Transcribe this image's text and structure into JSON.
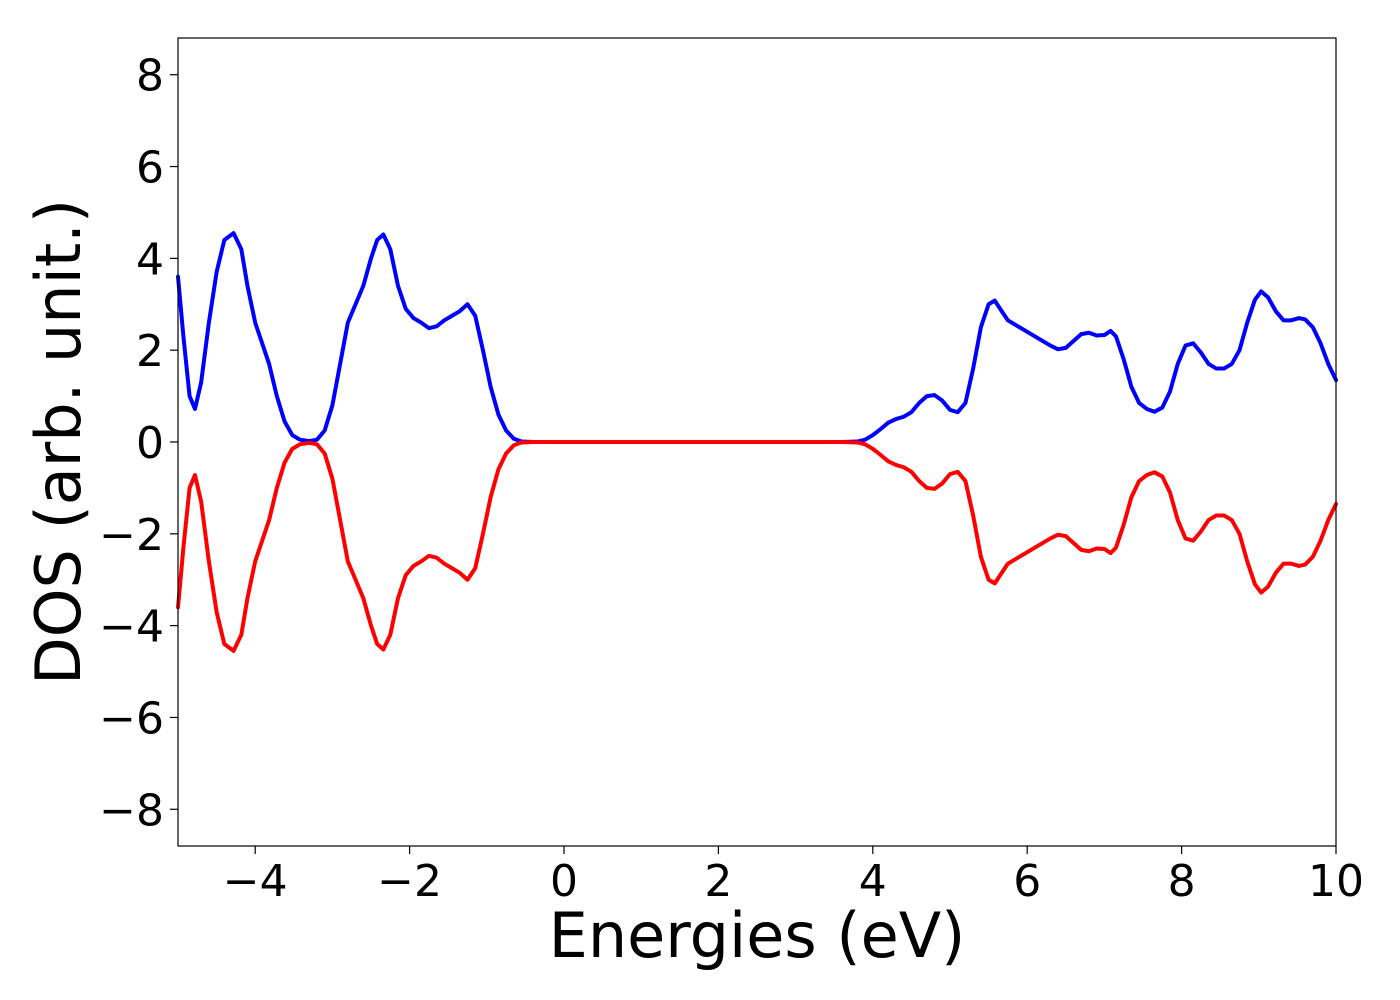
{
  "chart_data": {
    "type": "line",
    "title": "",
    "xlabel": "Energies (eV)",
    "ylabel": "DOS (arb. unit.)",
    "xlim": [
      -5,
      10
    ],
    "ylim": [
      -8.8,
      8.8
    ],
    "x_ticks": [
      -4,
      -2,
      0,
      2,
      4,
      6,
      8,
      10
    ],
    "x_tick_labels": [
      "−4",
      "−2",
      "0",
      "2",
      "4",
      "6",
      "8",
      "10"
    ],
    "y_ticks": [
      -8,
      -6,
      -4,
      -2,
      0,
      2,
      4,
      6,
      8
    ],
    "y_tick_labels": [
      "−8",
      "−6",
      "−4",
      "−2",
      "0",
      "2",
      "4",
      "6",
      "8"
    ],
    "grid": false,
    "legend": "none",
    "series": [
      {
        "color": "#0000ff",
        "points": [
          [
            -5.0,
            3.6
          ],
          [
            -4.93,
            2.3
          ],
          [
            -4.85,
            1.0
          ],
          [
            -4.78,
            0.72
          ],
          [
            -4.7,
            1.3
          ],
          [
            -4.6,
            2.6
          ],
          [
            -4.5,
            3.7
          ],
          [
            -4.4,
            4.4
          ],
          [
            -4.28,
            4.55
          ],
          [
            -4.18,
            4.2
          ],
          [
            -4.1,
            3.4
          ],
          [
            -4.0,
            2.6
          ],
          [
            -3.92,
            2.2
          ],
          [
            -3.82,
            1.7
          ],
          [
            -3.72,
            1.0
          ],
          [
            -3.62,
            0.45
          ],
          [
            -3.52,
            0.15
          ],
          [
            -3.42,
            0.05
          ],
          [
            -3.3,
            0.02
          ],
          [
            -3.2,
            0.05
          ],
          [
            -3.1,
            0.25
          ],
          [
            -3.0,
            0.8
          ],
          [
            -2.9,
            1.7
          ],
          [
            -2.8,
            2.6
          ],
          [
            -2.7,
            3.0
          ],
          [
            -2.6,
            3.4
          ],
          [
            -2.5,
            4.0
          ],
          [
            -2.42,
            4.4
          ],
          [
            -2.34,
            4.52
          ],
          [
            -2.25,
            4.2
          ],
          [
            -2.15,
            3.4
          ],
          [
            -2.05,
            2.9
          ],
          [
            -1.95,
            2.7
          ],
          [
            -1.85,
            2.6
          ],
          [
            -1.75,
            2.48
          ],
          [
            -1.65,
            2.52
          ],
          [
            -1.55,
            2.65
          ],
          [
            -1.45,
            2.75
          ],
          [
            -1.35,
            2.85
          ],
          [
            -1.25,
            3.0
          ],
          [
            -1.15,
            2.75
          ],
          [
            -1.05,
            2.0
          ],
          [
            -0.95,
            1.2
          ],
          [
            -0.85,
            0.6
          ],
          [
            -0.75,
            0.25
          ],
          [
            -0.65,
            0.07
          ],
          [
            -0.55,
            0.01
          ],
          [
            -0.4,
            0.0
          ],
          [
            0.0,
            0.0
          ],
          [
            1.0,
            0.0
          ],
          [
            2.0,
            0.0
          ],
          [
            3.0,
            0.0
          ],
          [
            3.6,
            0.0
          ],
          [
            3.8,
            0.01
          ],
          [
            3.9,
            0.05
          ],
          [
            4.0,
            0.15
          ],
          [
            4.1,
            0.28
          ],
          [
            4.2,
            0.42
          ],
          [
            4.3,
            0.5
          ],
          [
            4.4,
            0.55
          ],
          [
            4.5,
            0.65
          ],
          [
            4.6,
            0.85
          ],
          [
            4.7,
            1.0
          ],
          [
            4.8,
            1.02
          ],
          [
            4.9,
            0.9
          ],
          [
            5.0,
            0.7
          ],
          [
            5.1,
            0.65
          ],
          [
            5.2,
            0.85
          ],
          [
            5.3,
            1.6
          ],
          [
            5.4,
            2.5
          ],
          [
            5.5,
            3.0
          ],
          [
            5.58,
            3.08
          ],
          [
            5.65,
            2.9
          ],
          [
            5.75,
            2.65
          ],
          [
            5.85,
            2.55
          ],
          [
            6.0,
            2.4
          ],
          [
            6.15,
            2.25
          ],
          [
            6.3,
            2.1
          ],
          [
            6.4,
            2.02
          ],
          [
            6.5,
            2.05
          ],
          [
            6.6,
            2.2
          ],
          [
            6.7,
            2.35
          ],
          [
            6.8,
            2.38
          ],
          [
            6.9,
            2.32
          ],
          [
            7.0,
            2.33
          ],
          [
            7.08,
            2.42
          ],
          [
            7.15,
            2.3
          ],
          [
            7.25,
            1.8
          ],
          [
            7.35,
            1.2
          ],
          [
            7.45,
            0.85
          ],
          [
            7.55,
            0.72
          ],
          [
            7.65,
            0.66
          ],
          [
            7.75,
            0.75
          ],
          [
            7.85,
            1.1
          ],
          [
            7.95,
            1.7
          ],
          [
            8.05,
            2.1
          ],
          [
            8.15,
            2.15
          ],
          [
            8.25,
            1.95
          ],
          [
            8.35,
            1.7
          ],
          [
            8.45,
            1.6
          ],
          [
            8.55,
            1.6
          ],
          [
            8.65,
            1.7
          ],
          [
            8.75,
            2.0
          ],
          [
            8.85,
            2.6
          ],
          [
            8.95,
            3.1
          ],
          [
            9.03,
            3.28
          ],
          [
            9.12,
            3.15
          ],
          [
            9.22,
            2.85
          ],
          [
            9.32,
            2.65
          ],
          [
            9.42,
            2.65
          ],
          [
            9.52,
            2.7
          ],
          [
            9.6,
            2.67
          ],
          [
            9.7,
            2.5
          ],
          [
            9.8,
            2.15
          ],
          [
            9.9,
            1.7
          ],
          [
            10.0,
            1.35
          ]
        ]
      },
      {
        "color": "#ff0000",
        "points": [
          [
            -5.0,
            -3.6
          ],
          [
            -4.93,
            -2.3
          ],
          [
            -4.85,
            -1.0
          ],
          [
            -4.78,
            -0.72
          ],
          [
            -4.7,
            -1.3
          ],
          [
            -4.6,
            -2.6
          ],
          [
            -4.5,
            -3.7
          ],
          [
            -4.4,
            -4.4
          ],
          [
            -4.28,
            -4.55
          ],
          [
            -4.18,
            -4.2
          ],
          [
            -4.1,
            -3.4
          ],
          [
            -4.0,
            -2.6
          ],
          [
            -3.92,
            -2.2
          ],
          [
            -3.82,
            -1.7
          ],
          [
            -3.72,
            -1.0
          ],
          [
            -3.62,
            -0.45
          ],
          [
            -3.52,
            -0.15
          ],
          [
            -3.42,
            -0.05
          ],
          [
            -3.3,
            -0.02
          ],
          [
            -3.2,
            -0.05
          ],
          [
            -3.1,
            -0.25
          ],
          [
            -3.0,
            -0.8
          ],
          [
            -2.9,
            -1.7
          ],
          [
            -2.8,
            -2.6
          ],
          [
            -2.7,
            -3.0
          ],
          [
            -2.6,
            -3.4
          ],
          [
            -2.5,
            -4.0
          ],
          [
            -2.42,
            -4.4
          ],
          [
            -2.34,
            -4.52
          ],
          [
            -2.25,
            -4.2
          ],
          [
            -2.15,
            -3.4
          ],
          [
            -2.05,
            -2.9
          ],
          [
            -1.95,
            -2.7
          ],
          [
            -1.85,
            -2.6
          ],
          [
            -1.75,
            -2.48
          ],
          [
            -1.65,
            -2.52
          ],
          [
            -1.55,
            -2.65
          ],
          [
            -1.45,
            -2.75
          ],
          [
            -1.35,
            -2.85
          ],
          [
            -1.25,
            -3.0
          ],
          [
            -1.15,
            -2.75
          ],
          [
            -1.05,
            -2.0
          ],
          [
            -0.95,
            -1.2
          ],
          [
            -0.85,
            -0.6
          ],
          [
            -0.75,
            -0.25
          ],
          [
            -0.65,
            -0.07
          ],
          [
            -0.55,
            -0.01
          ],
          [
            -0.4,
            0.0
          ],
          [
            0.0,
            0.0
          ],
          [
            1.0,
            0.0
          ],
          [
            2.0,
            0.0
          ],
          [
            3.0,
            0.0
          ],
          [
            3.6,
            0.0
          ],
          [
            3.8,
            -0.01
          ],
          [
            3.9,
            -0.05
          ],
          [
            4.0,
            -0.15
          ],
          [
            4.1,
            -0.28
          ],
          [
            4.2,
            -0.42
          ],
          [
            4.3,
            -0.5
          ],
          [
            4.4,
            -0.55
          ],
          [
            4.5,
            -0.65
          ],
          [
            4.6,
            -0.85
          ],
          [
            4.7,
            -1.0
          ],
          [
            4.8,
            -1.02
          ],
          [
            4.9,
            -0.9
          ],
          [
            5.0,
            -0.7
          ],
          [
            5.1,
            -0.65
          ],
          [
            5.2,
            -0.85
          ],
          [
            5.3,
            -1.6
          ],
          [
            5.4,
            -2.5
          ],
          [
            5.5,
            -3.0
          ],
          [
            5.58,
            -3.08
          ],
          [
            5.65,
            -2.9
          ],
          [
            5.75,
            -2.65
          ],
          [
            5.85,
            -2.55
          ],
          [
            6.0,
            -2.4
          ],
          [
            6.15,
            -2.25
          ],
          [
            6.3,
            -2.1
          ],
          [
            6.4,
            -2.02
          ],
          [
            6.5,
            -2.05
          ],
          [
            6.6,
            -2.2
          ],
          [
            6.7,
            -2.35
          ],
          [
            6.8,
            -2.38
          ],
          [
            6.9,
            -2.32
          ],
          [
            7.0,
            -2.33
          ],
          [
            7.08,
            -2.42
          ],
          [
            7.15,
            -2.3
          ],
          [
            7.25,
            -1.8
          ],
          [
            7.35,
            -1.2
          ],
          [
            7.45,
            -0.85
          ],
          [
            7.55,
            -0.72
          ],
          [
            7.65,
            -0.66
          ],
          [
            7.75,
            -0.75
          ],
          [
            7.85,
            -1.1
          ],
          [
            7.95,
            -1.7
          ],
          [
            8.05,
            -2.1
          ],
          [
            8.15,
            -2.15
          ],
          [
            8.25,
            -1.95
          ],
          [
            8.35,
            -1.7
          ],
          [
            8.45,
            -1.6
          ],
          [
            8.55,
            -1.6
          ],
          [
            8.65,
            -1.7
          ],
          [
            8.75,
            -2.0
          ],
          [
            8.85,
            -2.6
          ],
          [
            8.95,
            -3.1
          ],
          [
            9.03,
            -3.28
          ],
          [
            9.12,
            -3.15
          ],
          [
            9.22,
            -2.85
          ],
          [
            9.32,
            -2.65
          ],
          [
            9.42,
            -2.65
          ],
          [
            9.52,
            -2.7
          ],
          [
            9.6,
            -2.67
          ],
          [
            9.7,
            -2.5
          ],
          [
            9.8,
            -2.15
          ],
          [
            9.9,
            -1.7
          ],
          [
            10.0,
            -1.35
          ]
        ]
      }
    ]
  }
}
